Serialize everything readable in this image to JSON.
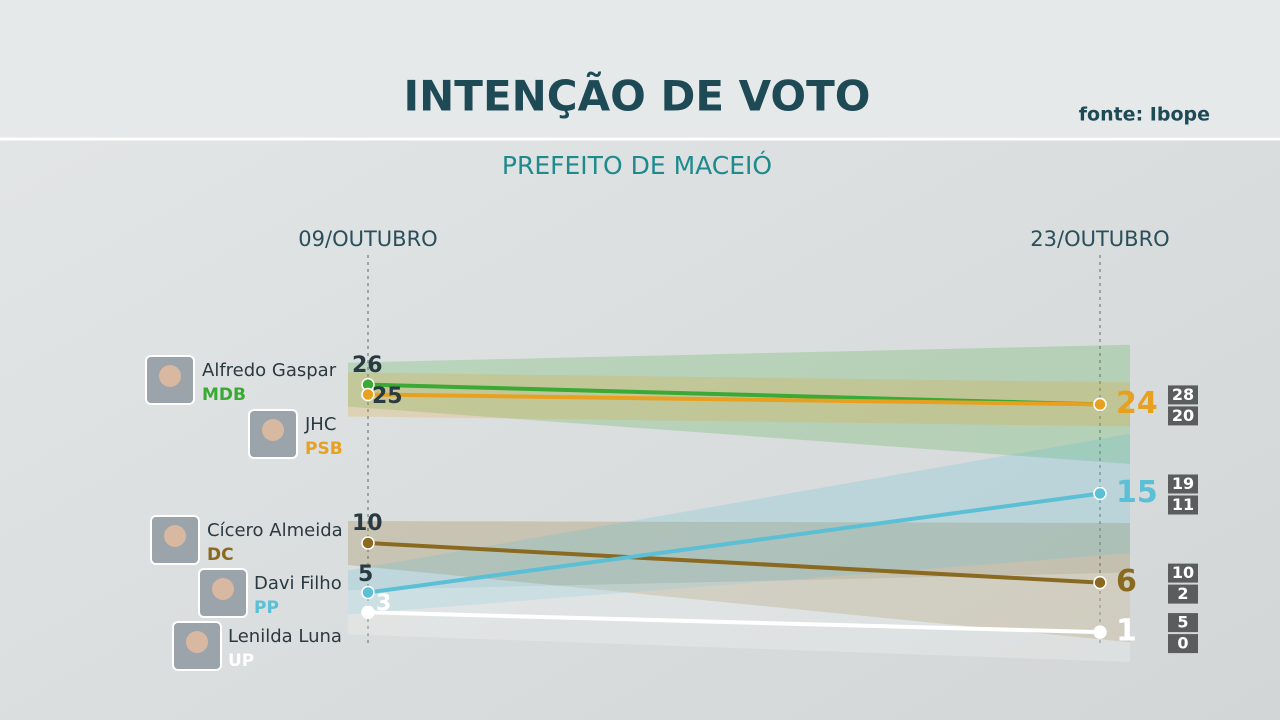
{
  "chart_data": {
    "type": "line",
    "title": "INTENÇÃO DE VOTO",
    "source": "fonte: Ibope",
    "subtitle": "PREFEITO DE MACEIÓ",
    "categories": [
      "09/OUTUBRO",
      "23/OUTUBRO"
    ],
    "ylim": [
      0,
      60
    ],
    "series": [
      {
        "name": "Alfredo Gaspar",
        "party": "MDB",
        "color": "#3aa935",
        "values": [
          26,
          24
        ],
        "interval": [
          20,
          28
        ]
      },
      {
        "name": "JHC",
        "party": "PSB",
        "color": "#e8a020",
        "values": [
          25,
          24
        ]
      },
      {
        "name": "Cícero Almeida",
        "party": "DC",
        "color": "#8a6a20",
        "values": [
          10,
          6
        ],
        "interval": [
          2,
          10
        ]
      },
      {
        "name": "Davi Filho",
        "party": "PP",
        "color": "#5bbfd6",
        "values": [
          5,
          15
        ],
        "interval": [
          11,
          19
        ]
      },
      {
        "name": "Lenilda Luna",
        "party": "UP",
        "color": "#ffffff",
        "values": [
          3,
          1
        ],
        "interval": [
          0,
          5
        ]
      }
    ]
  }
}
